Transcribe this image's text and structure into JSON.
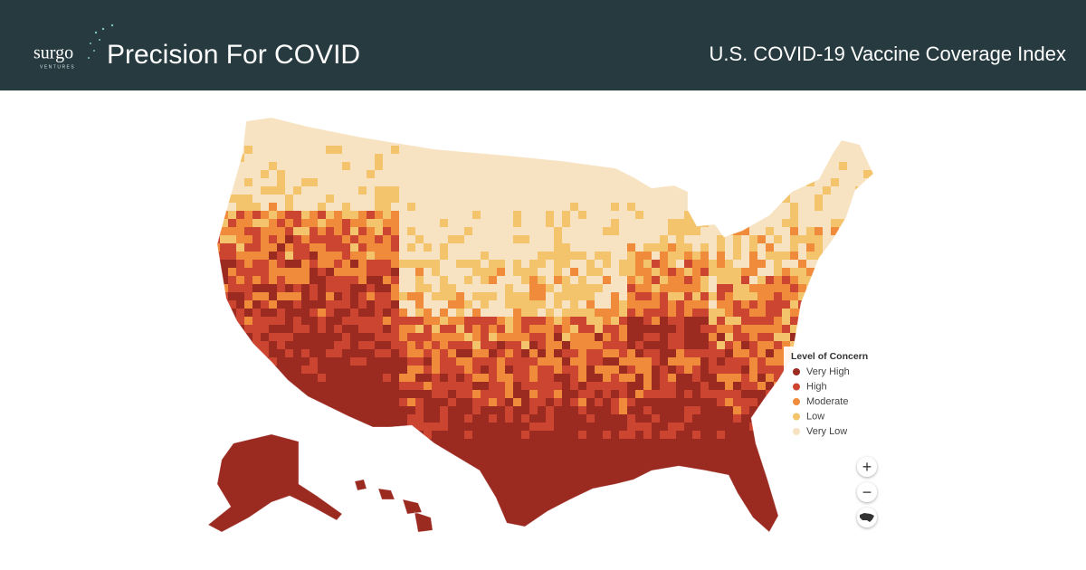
{
  "header": {
    "brand": "surgo",
    "brand_sub": "VENTURES",
    "title": "Precision For COVID",
    "subtitle": "U.S. COVID-19 Vaccine Coverage Index"
  },
  "legend": {
    "title": "Level of Concern",
    "items": [
      {
        "label": "Very High",
        "color": "#9b2a21"
      },
      {
        "label": "High",
        "color": "#cc4531"
      },
      {
        "label": "Moderate",
        "color": "#f08b3b"
      },
      {
        "label": "Low",
        "color": "#f4c46c"
      },
      {
        "label": "Very Low",
        "color": "#f7e3c1"
      }
    ]
  },
  "zoom_controls": {
    "zoom_in": "+",
    "zoom_out": "−"
  }
}
